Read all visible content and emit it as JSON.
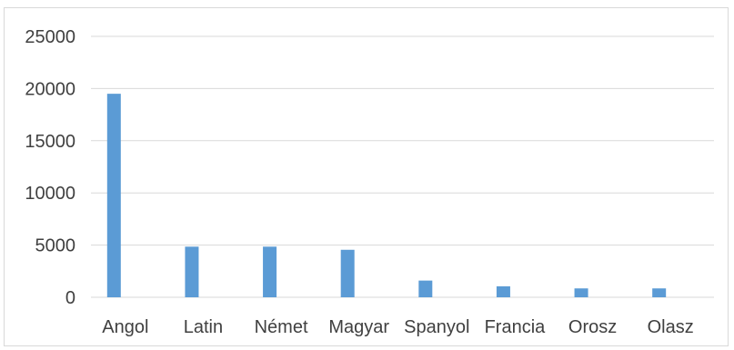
{
  "chart_data": {
    "type": "bar",
    "categories": [
      "Angol",
      "Latin",
      "Német",
      "Magyar",
      "Spanyol",
      "Francia",
      "Orosz",
      "Olasz"
    ],
    "values": [
      19500,
      4850,
      4850,
      4550,
      1600,
      1050,
      850,
      850
    ],
    "ylim": [
      0,
      25000
    ],
    "yticks": [
      0,
      5000,
      10000,
      15000,
      20000,
      25000
    ],
    "grid": true,
    "bar_color": "#5b9bd5",
    "grid_color": "#d9d9d9",
    "title": "",
    "xlabel": "",
    "ylabel": ""
  }
}
